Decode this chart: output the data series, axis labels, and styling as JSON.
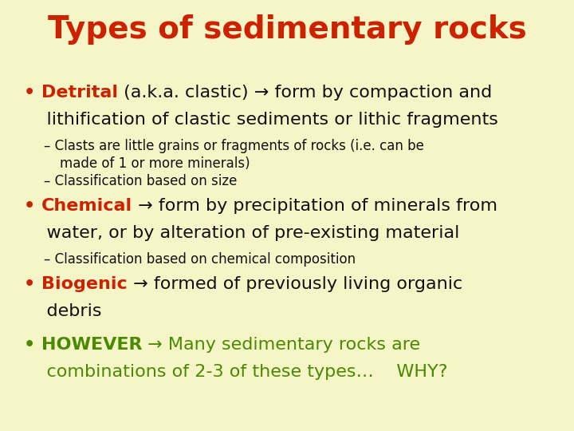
{
  "background_color": "#f5f5c8",
  "title": "Types of sedimentary rocks",
  "title_color": "#cc2200",
  "title_fontsize": 28,
  "red": "#cc2200",
  "green": "#4a8a00",
  "black": "#111111",
  "bullet_fontsize": 16,
  "sub_fontsize": 12,
  "figsize": [
    7.2,
    5.4
  ],
  "dpi": 100,
  "lines": [
    {
      "indent": 0,
      "segments": [
        {
          "text": "• ",
          "color": "#cc2200",
          "bold": true,
          "size": 16
        },
        {
          "text": "Detrital",
          "color": "#cc2200",
          "bold": true,
          "size": 16
        },
        {
          "text": " (a.k.a. clastic) → form by compaction and",
          "color": "#111111",
          "bold": false,
          "size": 16
        }
      ]
    },
    {
      "indent": 0,
      "segments": [
        {
          "text": "    lithification of clastic sediments or lithic fragments",
          "color": "#111111",
          "bold": false,
          "size": 16
        }
      ]
    },
    {
      "indent": 1,
      "segments": [
        {
          "text": "– Clasts are little grains or fragments of rocks (i.e. can be",
          "color": "#111111",
          "bold": false,
          "size": 12
        }
      ]
    },
    {
      "indent": 2,
      "segments": [
        {
          "text": "made of 1 or more minerals)",
          "color": "#111111",
          "bold": false,
          "size": 12
        }
      ]
    },
    {
      "indent": 1,
      "segments": [
        {
          "text": "– Classification based on size",
          "color": "#111111",
          "bold": false,
          "size": 12
        }
      ]
    },
    {
      "indent": 0,
      "segments": [
        {
          "text": "• ",
          "color": "#cc2200",
          "bold": true,
          "size": 16
        },
        {
          "text": "Chemical",
          "color": "#cc2200",
          "bold": true,
          "size": 16
        },
        {
          "text": " → form by precipitation of minerals from",
          "color": "#111111",
          "bold": false,
          "size": 16
        }
      ]
    },
    {
      "indent": 0,
      "segments": [
        {
          "text": "    water, or by alteration of pre-existing material",
          "color": "#111111",
          "bold": false,
          "size": 16
        }
      ]
    },
    {
      "indent": 1,
      "segments": [
        {
          "text": "– Classification based on chemical composition",
          "color": "#111111",
          "bold": false,
          "size": 12
        }
      ]
    },
    {
      "indent": 0,
      "segments": [
        {
          "text": "• ",
          "color": "#cc2200",
          "bold": true,
          "size": 16
        },
        {
          "text": "Biogenic",
          "color": "#cc2200",
          "bold": true,
          "size": 16
        },
        {
          "text": " → formed of previously living organic",
          "color": "#111111",
          "bold": false,
          "size": 16
        }
      ]
    },
    {
      "indent": 0,
      "segments": [
        {
          "text": "    debris",
          "color": "#111111",
          "bold": false,
          "size": 16
        }
      ]
    },
    {
      "indent": 0,
      "segments": [
        {
          "text": "• ",
          "color": "#4a8a00",
          "bold": true,
          "size": 16
        },
        {
          "text": "HOWEVER",
          "color": "#4a8a00",
          "bold": true,
          "size": 16
        },
        {
          "text": " → Many sedimentary rocks are",
          "color": "#4a8a00",
          "bold": false,
          "size": 16
        }
      ]
    },
    {
      "indent": 0,
      "segments": [
        {
          "text": "    combinations of 2-3 of these types…    WHY?",
          "color": "#4a8a00",
          "bold": false,
          "size": 16
        }
      ]
    }
  ],
  "line_spacing": {
    "after_title": 50,
    "main_line": 34,
    "sub_line": 22,
    "between_bullets": 8
  },
  "left_margins": {
    "0": 30,
    "1": 55,
    "2": 75
  }
}
